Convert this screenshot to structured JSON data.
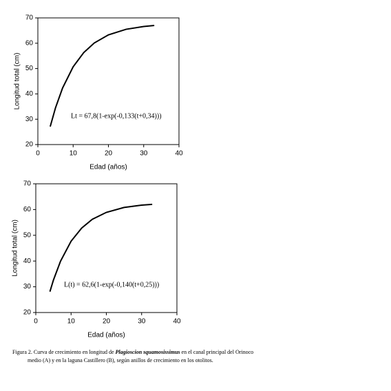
{
  "chart_data": [
    {
      "type": "line",
      "x": [
        3.5,
        5,
        7,
        10,
        13,
        16,
        20,
        25,
        30,
        33
      ],
      "series": [
        {
          "color": "#000000",
          "values": [
            27.1,
            34.5,
            42.3,
            50.7,
            56.3,
            60.1,
            63.3,
            65.5,
            66.6,
            67.0
          ]
        }
      ],
      "xlabel": "Edad (años)",
      "ylabel": "Longitud total (cm)",
      "annotation": "Lt = 67,8(1-exp(-0,133(t+0,34)))",
      "xlim": [
        0,
        40
      ],
      "ylim": [
        20,
        70
      ],
      "xticks": [
        0,
        10,
        20,
        30,
        40
      ],
      "yticks": [
        20,
        30,
        40,
        50,
        60,
        70
      ],
      "grid": false
    },
    {
      "type": "line",
      "x": [
        4,
        5,
        7,
        10,
        13,
        16,
        20,
        25,
        30,
        33
      ],
      "series": [
        {
          "color": "#000000",
          "values": [
            28.1,
            32.6,
            39.9,
            47.7,
            52.8,
            56.2,
            58.9,
            60.8,
            61.7,
            62.0
          ]
        }
      ],
      "xlabel": "Edad (años)",
      "ylabel": "Longitud total (cm)",
      "annotation": "L(t) = 62,6(1-exp(-0,140(t+0,25)))",
      "xlim": [
        0,
        40
      ],
      "ylim": [
        20,
        70
      ],
      "xticks": [
        0,
        10,
        20,
        30,
        40
      ],
      "yticks": [
        20,
        30,
        40,
        50,
        60,
        70
      ],
      "grid": false
    }
  ],
  "caption": {
    "prefix": "Figura 2. Curva de crecimiento en longitud de ",
    "species": "Plagioscion squamosissimus",
    "suffix": " en el canal principal del Orinoco",
    "line2": "medio (A) y en la laguna Castillero (B), según anillos de crecimiento en los otolitos."
  }
}
